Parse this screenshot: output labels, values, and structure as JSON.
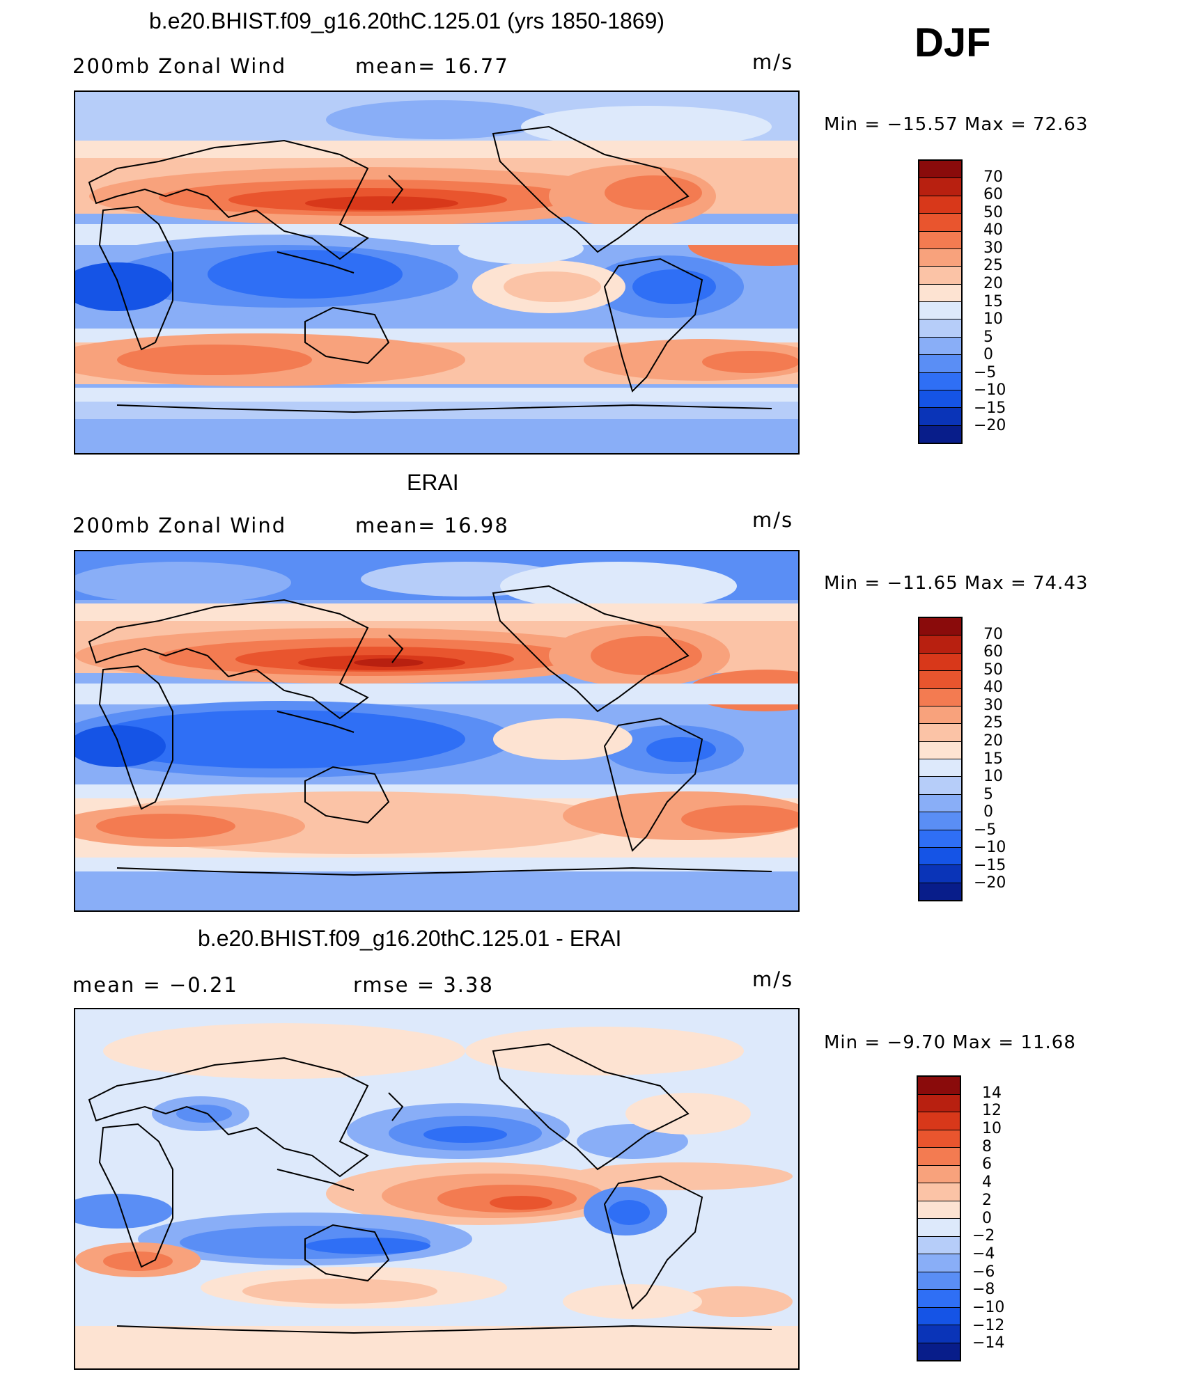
{
  "season": "DJF",
  "panels": [
    {
      "title": "b.e20.BHIST.f09_g16.20thC.125.01 (yrs 1850-1869)",
      "left_text": "200mb  Zonal  Wind",
      "stat_text": "mean=   16.77",
      "units": "m/s",
      "minmax": "Min  =  −15.57  Max  =    72.63",
      "colors": [
        "#081d8a",
        "#0a34b8",
        "#1554e6",
        "#2f6ff5",
        "#5a8ef5",
        "#89aef7",
        "#b6cdf9",
        "#dde9fb",
        "#fde3d2",
        "#fbc3a6",
        "#f8a27c",
        "#f37b51",
        "#e9552e",
        "#d8381a",
        "#b82010",
        "#8a0b0b"
      ],
      "labels": [
        "70",
        "60",
        "50",
        "40",
        "30",
        "25",
        "20",
        "15",
        "10",
        "5",
        "0",
        "−5",
        "−10",
        "−15",
        "−20"
      ]
    },
    {
      "title": "ERAI",
      "left_text": "200mb  Zonal  Wind",
      "stat_text": "mean=   16.98",
      "units": "m/s",
      "minmax": "Min  =  −11.65  Max  =    74.43",
      "colors": [
        "#081d8a",
        "#0a34b8",
        "#1554e6",
        "#2f6ff5",
        "#5a8ef5",
        "#89aef7",
        "#b6cdf9",
        "#dde9fb",
        "#fde3d2",
        "#fbc3a6",
        "#f8a27c",
        "#f37b51",
        "#e9552e",
        "#d8381a",
        "#b82010",
        "#8a0b0b"
      ],
      "labels": [
        "70",
        "60",
        "50",
        "40",
        "30",
        "25",
        "20",
        "15",
        "10",
        "5",
        "0",
        "−5",
        "−10",
        "−15",
        "−20"
      ]
    },
    {
      "title": "b.e20.BHIST.f09_g16.20thC.125.01 - ERAI",
      "left_text": "mean  =    −0.21",
      "stat_text": "rmse  =     3.38",
      "units": "m/s",
      "minmax": "Min  =     −9.70  Max  =    11.68",
      "colors": [
        "#081d8a",
        "#0a34b8",
        "#1554e6",
        "#2f6ff5",
        "#5a8ef5",
        "#89aef7",
        "#b6cdf9",
        "#dde9fb",
        "#fde3d2",
        "#fbc3a6",
        "#f8a27c",
        "#f37b51",
        "#e9552e",
        "#d8381a",
        "#b82010",
        "#8a0b0b"
      ],
      "labels": [
        "14",
        "12",
        "10",
        "8",
        "6",
        "4",
        "2",
        "0",
        "−2",
        "−4",
        "−6",
        "−8",
        "−10",
        "−12",
        "−14"
      ]
    }
  ]
}
